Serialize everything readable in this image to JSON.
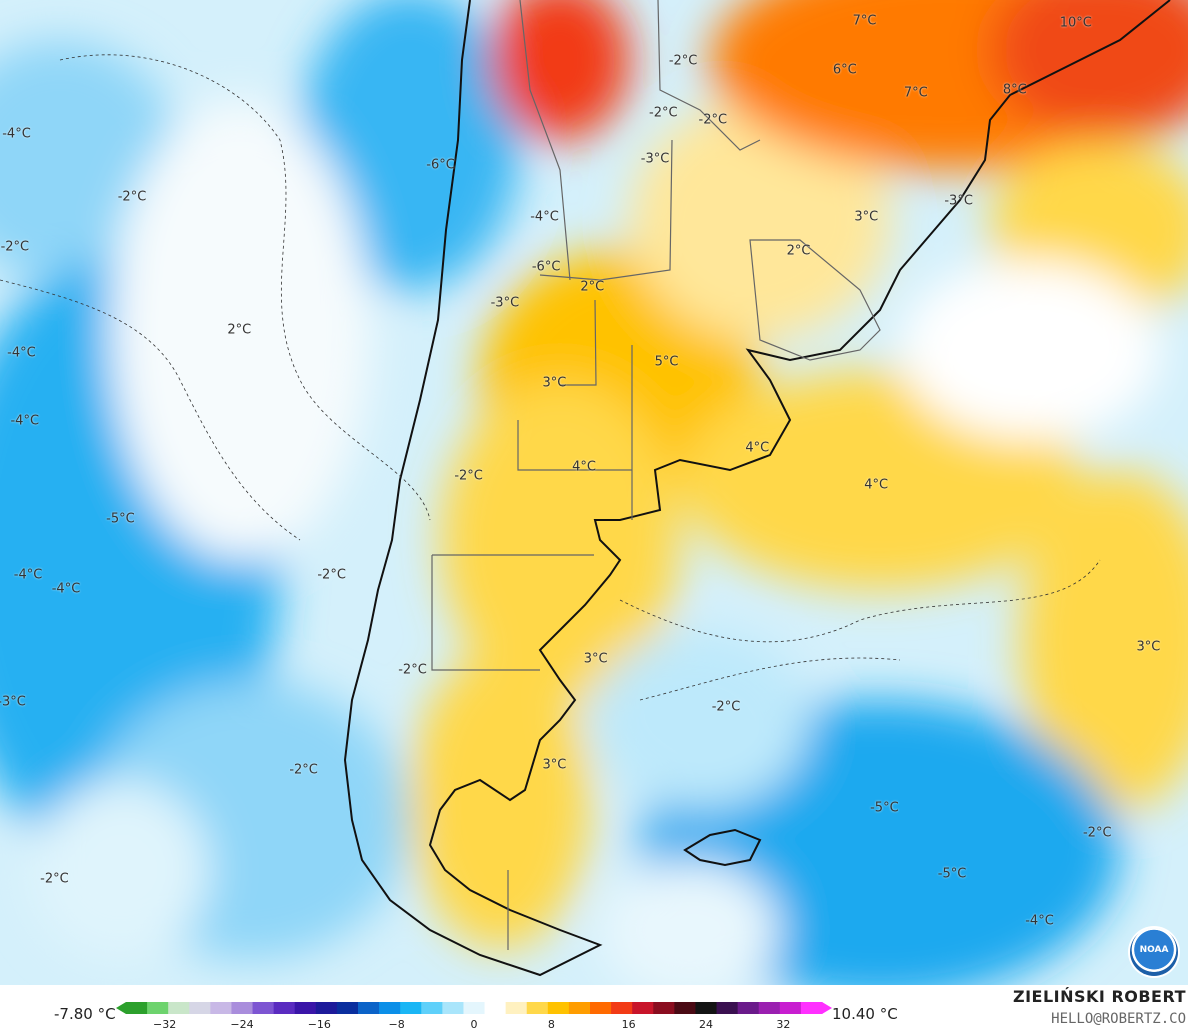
{
  "map": {
    "labels": [
      {
        "text": "-2°C",
        "lon": -62.6,
        "lat": -18.4
      },
      {
        "text": "-2°C",
        "lon": -63.8,
        "lat": -21.3
      },
      {
        "text": "-2°C",
        "lon": -60.8,
        "lat": -21.7
      },
      {
        "text": "-3°C",
        "lon": -64.3,
        "lat": -23.9
      },
      {
        "text": "-4°C",
        "lon": -71.0,
        "lat": -27.1
      },
      {
        "text": "-6°C",
        "lon": -70.9,
        "lat": -29.9
      },
      {
        "text": "2°C",
        "lon": -68.1,
        "lat": -31.0
      },
      {
        "text": "-3°C",
        "lon": -73.4,
        "lat": -31.9
      },
      {
        "text": "3°C",
        "lon": -70.4,
        "lat": -36.4
      },
      {
        "text": "5°C",
        "lon": -63.6,
        "lat": -35.2
      },
      {
        "text": "4°C",
        "lon": -68.6,
        "lat": -41.1
      },
      {
        "text": "4°C",
        "lon": -58.1,
        "lat": -40.0
      },
      {
        "text": "-2°C",
        "lon": -75.6,
        "lat": -41.6
      },
      {
        "text": "3°C",
        "lon": -67.9,
        "lat": -51.8
      },
      {
        "text": "3°C",
        "lon": -70.4,
        "lat": -57.7
      },
      {
        "text": "2°C",
        "lon": -55.6,
        "lat": -29.0
      },
      {
        "text": "3°C",
        "lon": -51.5,
        "lat": -27.1
      },
      {
        "text": "-3°C",
        "lon": -45.9,
        "lat": -26.2
      },
      {
        "text": "6°C",
        "lon": -52.8,
        "lat": -18.9
      },
      {
        "text": "7°C",
        "lon": -51.6,
        "lat": -16.2
      },
      {
        "text": "7°C",
        "lon": -48.5,
        "lat": -20.2
      },
      {
        "text": "8°C",
        "lon": -42.5,
        "lat": -20.0
      },
      {
        "text": "10°C",
        "lon": -38.8,
        "lat": -16.3
      },
      {
        "text": "4°C",
        "lon": -50.9,
        "lat": -42.1
      },
      {
        "text": "3°C",
        "lon": -34.4,
        "lat": -51.1
      },
      {
        "text": "-2°C",
        "lon": -60.0,
        "lat": -54.5
      },
      {
        "text": "-5°C",
        "lon": -50.4,
        "lat": -60.1
      },
      {
        "text": "-5°C",
        "lon": -46.3,
        "lat": -63.8
      },
      {
        "text": "-2°C",
        "lon": -37.5,
        "lat": -61.5
      },
      {
        "text": "-4°C",
        "lon": -41.0,
        "lat": -66.4
      },
      {
        "text": "-4°C",
        "lon": -103.0,
        "lat": -22.5
      },
      {
        "text": "-6°C",
        "lon": -77.3,
        "lat": -24.2
      },
      {
        "text": "-2°C",
        "lon": -96.0,
        "lat": -26.0
      },
      {
        "text": "-2°C",
        "lon": -103.1,
        "lat": -28.8
      },
      {
        "text": "2°C",
        "lon": -89.5,
        "lat": -33.4
      },
      {
        "text": "-4°C",
        "lon": -102.7,
        "lat": -34.7
      },
      {
        "text": "-4°C",
        "lon": -102.5,
        "lat": -38.5
      },
      {
        "text": "-5°C",
        "lon": -96.7,
        "lat": -44.0
      },
      {
        "text": "-4°C",
        "lon": -102.3,
        "lat": -47.1
      },
      {
        "text": "-4°C",
        "lon": -100.0,
        "lat": -47.9
      },
      {
        "text": "-2°C",
        "lon": -83.9,
        "lat": -47.1
      },
      {
        "text": "-2°C",
        "lon": -79.0,
        "lat": -52.4
      },
      {
        "text": "-3°C",
        "lon": -103.3,
        "lat": -54.2
      },
      {
        "text": "-2°C",
        "lon": -85.6,
        "lat": -58.0
      },
      {
        "text": "-2°C",
        "lon": -100.7,
        "lat": -64.1
      }
    ],
    "bounds": {
      "lon_min": -104,
      "lon_max": -32,
      "lat_min": -70,
      "lat_max": -15
    }
  },
  "colorbar": {
    "min_label": "-7.80 °C",
    "max_label": "10.40 °C",
    "tick_labels": [
      "−32",
      "−24",
      "−16",
      "−8",
      "0",
      "8",
      "16",
      "24",
      "32"
    ],
    "range": [
      -36,
      36
    ],
    "colors": [
      "#2ca02c",
      "#6dd36d",
      "#c9e6c9",
      "#d6d6e6",
      "#c8b8e6",
      "#a98ddc",
      "#7d55d2",
      "#5a2bc0",
      "#3a15a8",
      "#1d1a9a",
      "#0a2e9e",
      "#0b63c8",
      "#0b8fe8",
      "#1ab6f5",
      "#5fd0fa",
      "#a9e5fb",
      "#e4f6fd",
      "#ffffff",
      "#fff1c0",
      "#ffd84a",
      "#ffc200",
      "#ff9d00",
      "#ff6a00",
      "#f23b16",
      "#c8152a",
      "#8a0d1f",
      "#4a0a14",
      "#141414",
      "#3a1050",
      "#6a1a8a",
      "#9a20b0",
      "#c81ed0",
      "#ff30ff"
    ]
  },
  "logo": {
    "text": "NOAA"
  },
  "author": {
    "name": "ZIELIŃSKI ROBERT",
    "contact": "HELLO@ROBERTZ.CO"
  }
}
